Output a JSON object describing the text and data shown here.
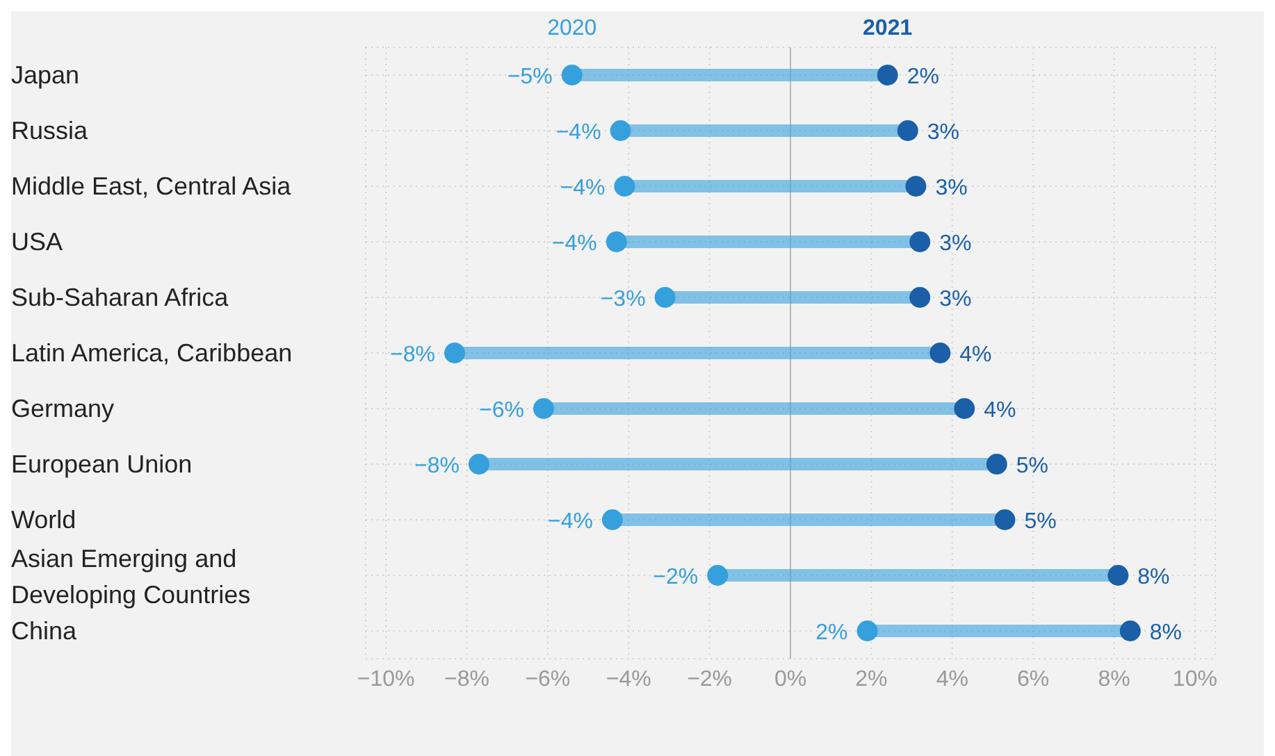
{
  "chart_data": {
    "type": "scatter",
    "orientation": "horizontal",
    "categories": [
      "Japan",
      "Russia",
      "Middle East, Central Asia",
      "USA",
      "Sub-Saharan Africa",
      "Latin America, Caribbean",
      "Germany",
      "European Union",
      "World",
      "Asian Emerging and Developing Countries",
      "China"
    ],
    "series": [
      {
        "name": "2020",
        "color": "#35a0dc",
        "values": [
          -5.4,
          -4.2,
          -4.1,
          -4.3,
          -3.1,
          -8.3,
          -6.1,
          -7.7,
          -4.4,
          -1.8,
          1.9
        ],
        "value_labels": [
          "−5%",
          "−4%",
          "−4%",
          "−4%",
          "−3%",
          "−8%",
          "−6%",
          "−8%",
          "−4%",
          "−2%",
          "2%"
        ]
      },
      {
        "name": "2021",
        "color": "#1a5fa8",
        "values": [
          2.4,
          2.9,
          3.1,
          3.2,
          3.2,
          3.7,
          4.3,
          5.1,
          5.3,
          8.1,
          8.4
        ],
        "value_labels": [
          "2%",
          "3%",
          "3%",
          "3%",
          "3%",
          "4%",
          "4%",
          "5%",
          "5%",
          "8%",
          "8%"
        ]
      }
    ],
    "xlim": [
      -10.5,
      10.5
    ],
    "xticks": [
      {
        "value": -10,
        "label": "−10%"
      },
      {
        "value": -8,
        "label": "−8%"
      },
      {
        "value": -6,
        "label": "−6%"
      },
      {
        "value": -4,
        "label": "−4%"
      },
      {
        "value": -2,
        "label": "−2%"
      },
      {
        "value": 0,
        "label": "0%"
      },
      {
        "value": 2,
        "label": "2%"
      },
      {
        "value": 4,
        "label": "4%"
      },
      {
        "value": 6,
        "label": "6%"
      },
      {
        "value": 8,
        "label": "8%"
      },
      {
        "value": 10,
        "label": "10%"
      }
    ],
    "ref_lines": [
      {
        "axis": "x",
        "value": 0,
        "color": "#b8b8b8"
      }
    ],
    "grid": true,
    "legend": "top",
    "marker": "circle"
  }
}
